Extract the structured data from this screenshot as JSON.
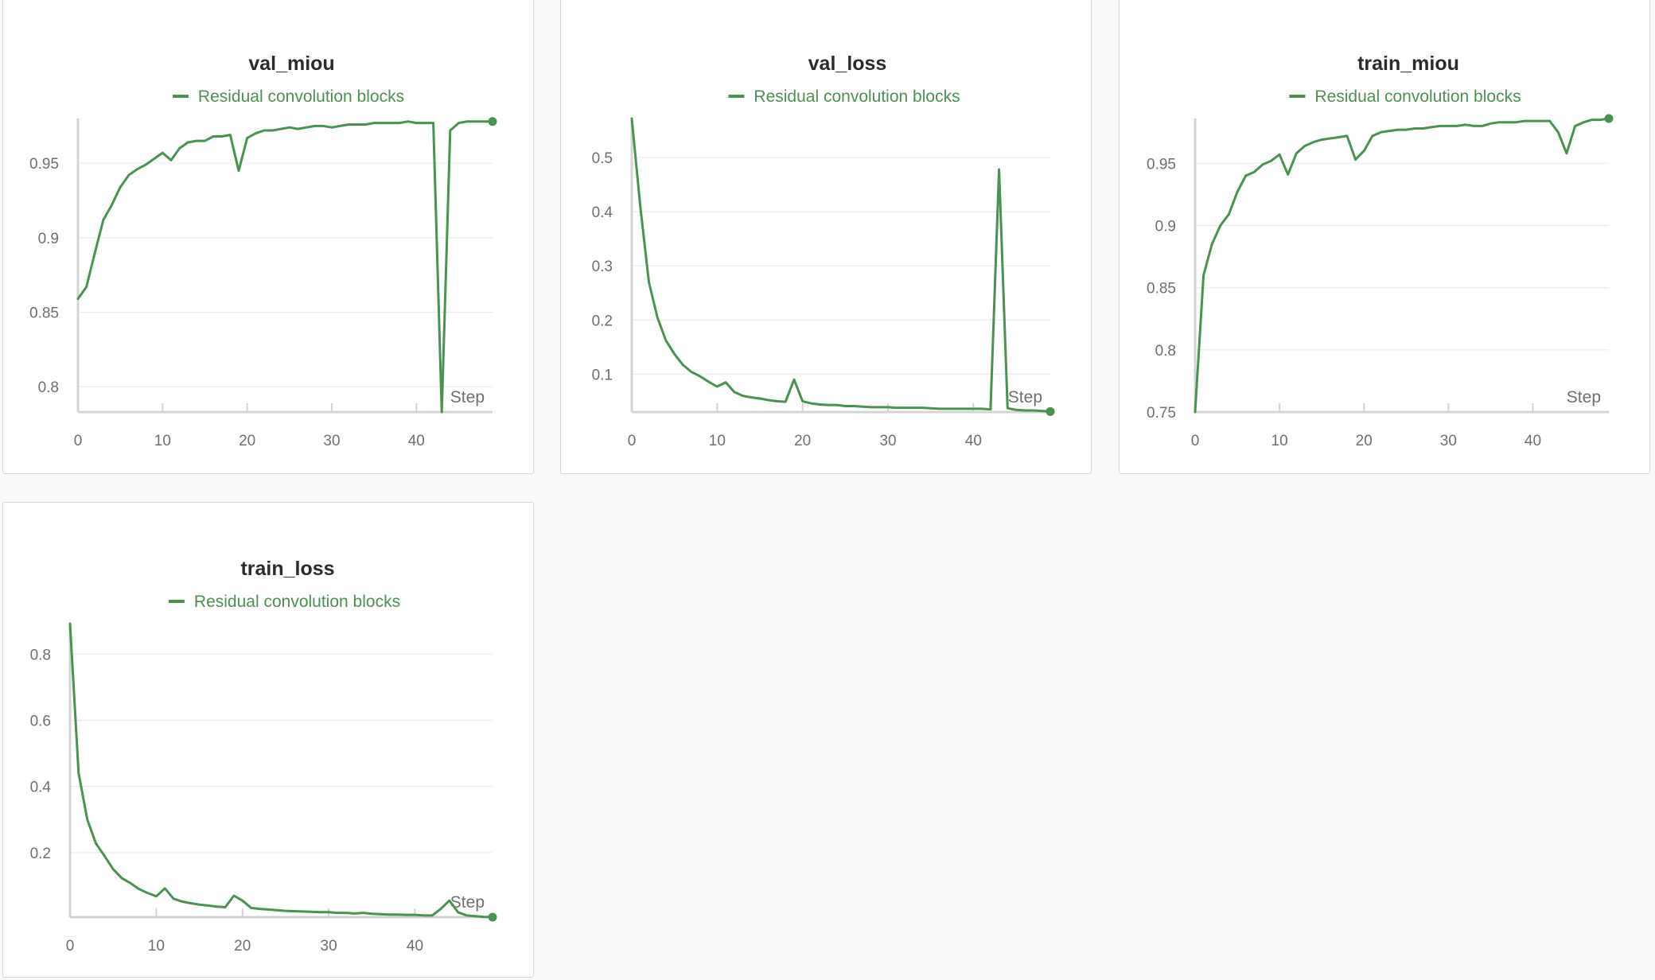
{
  "colors": {
    "series": "#4a9152",
    "grid": "#ececec",
    "axis": "#d4d4d4",
    "tick_text": "#6f6f6f",
    "panel_border": "#d6d6d6",
    "background": "#f9f9f9"
  },
  "chart_data": [
    {
      "type": "line",
      "title": "val_miou",
      "xlabel": "Step",
      "ylabel": "",
      "xlim": [
        0,
        49
      ],
      "ylim": [
        0.783,
        0.98
      ],
      "xticks": [
        0,
        10,
        20,
        30,
        40
      ],
      "yticks": [
        0.8,
        0.85,
        0.9,
        0.95
      ],
      "ytick_labels": [
        "0.8",
        "0.85",
        "0.9",
        "0.95"
      ],
      "legend": "top-center",
      "grid": true,
      "series": [
        {
          "name": "Residual convolution blocks",
          "x": [
            0,
            1,
            2,
            3,
            4,
            5,
            6,
            7,
            8,
            9,
            10,
            11,
            12,
            13,
            14,
            15,
            16,
            17,
            18,
            19,
            20,
            21,
            22,
            23,
            24,
            25,
            26,
            27,
            28,
            29,
            30,
            31,
            32,
            33,
            34,
            35,
            36,
            37,
            38,
            39,
            40,
            41,
            42,
            43,
            44,
            45,
            46,
            47,
            48,
            49
          ],
          "y": [
            0.859,
            0.867,
            0.89,
            0.912,
            0.922,
            0.934,
            0.942,
            0.946,
            0.949,
            0.953,
            0.957,
            0.952,
            0.96,
            0.964,
            0.965,
            0.965,
            0.968,
            0.968,
            0.969,
            0.945,
            0.967,
            0.97,
            0.972,
            0.972,
            0.973,
            0.974,
            0.973,
            0.974,
            0.975,
            0.975,
            0.974,
            0.975,
            0.976,
            0.976,
            0.976,
            0.977,
            0.977,
            0.977,
            0.977,
            0.978,
            0.977,
            0.977,
            0.977,
            0.783,
            0.972,
            0.977,
            0.978,
            0.978,
            0.978,
            0.978
          ]
        }
      ]
    },
    {
      "type": "line",
      "title": "val_loss",
      "xlabel": "Step",
      "ylabel": "",
      "xlim": [
        0,
        49
      ],
      "ylim": [
        0.03,
        0.572
      ],
      "xticks": [
        0,
        10,
        20,
        30,
        40
      ],
      "yticks": [
        0.1,
        0.2,
        0.3,
        0.4,
        0.5
      ],
      "ytick_labels": [
        "0.1",
        "0.2",
        "0.3",
        "0.4",
        "0.5"
      ],
      "legend": "top-center",
      "grid": true,
      "series": [
        {
          "name": "Residual convolution blocks",
          "x": [
            0,
            1,
            2,
            3,
            4,
            5,
            6,
            7,
            8,
            9,
            10,
            11,
            12,
            13,
            14,
            15,
            16,
            17,
            18,
            19,
            20,
            21,
            22,
            23,
            24,
            25,
            26,
            27,
            28,
            29,
            30,
            31,
            32,
            33,
            34,
            35,
            36,
            37,
            38,
            39,
            40,
            41,
            42,
            43,
            44,
            45,
            46,
            47,
            48,
            49
          ],
          "y": [
            0.572,
            0.41,
            0.27,
            0.205,
            0.162,
            0.137,
            0.117,
            0.104,
            0.096,
            0.086,
            0.077,
            0.085,
            0.067,
            0.06,
            0.057,
            0.055,
            0.052,
            0.05,
            0.049,
            0.09,
            0.05,
            0.046,
            0.044,
            0.043,
            0.043,
            0.041,
            0.041,
            0.04,
            0.039,
            0.039,
            0.039,
            0.038,
            0.038,
            0.038,
            0.038,
            0.037,
            0.036,
            0.036,
            0.036,
            0.036,
            0.036,
            0.036,
            0.035,
            0.478,
            0.037,
            0.034,
            0.033,
            0.033,
            0.032,
            0.031
          ]
        }
      ]
    },
    {
      "type": "line",
      "title": "train_miou",
      "xlabel": "Step",
      "ylabel": "",
      "xlim": [
        0,
        49
      ],
      "ylim": [
        0.75,
        0.986
      ],
      "xticks": [
        0,
        10,
        20,
        30,
        40
      ],
      "yticks": [
        0.75,
        0.8,
        0.85,
        0.9,
        0.95
      ],
      "ytick_labels": [
        "0.75",
        "0.8",
        "0.85",
        "0.9",
        "0.95"
      ],
      "legend": "top-center",
      "grid": true,
      "series": [
        {
          "name": "Residual convolution blocks",
          "x": [
            0,
            1,
            2,
            3,
            4,
            5,
            6,
            7,
            8,
            9,
            10,
            11,
            12,
            13,
            14,
            15,
            16,
            17,
            18,
            19,
            20,
            21,
            22,
            23,
            24,
            25,
            26,
            27,
            28,
            29,
            30,
            31,
            32,
            33,
            34,
            35,
            36,
            37,
            38,
            39,
            40,
            41,
            42,
            43,
            44,
            45,
            46,
            47,
            48,
            49
          ],
          "y": [
            0.75,
            0.86,
            0.885,
            0.9,
            0.909,
            0.927,
            0.94,
            0.943,
            0.949,
            0.952,
            0.957,
            0.941,
            0.958,
            0.964,
            0.967,
            0.969,
            0.97,
            0.971,
            0.972,
            0.953,
            0.96,
            0.972,
            0.975,
            0.976,
            0.977,
            0.977,
            0.978,
            0.978,
            0.979,
            0.98,
            0.98,
            0.98,
            0.981,
            0.98,
            0.98,
            0.982,
            0.983,
            0.983,
            0.983,
            0.984,
            0.984,
            0.984,
            0.984,
            0.975,
            0.958,
            0.98,
            0.983,
            0.985,
            0.985,
            0.986
          ]
        }
      ]
    },
    {
      "type": "line",
      "title": "train_loss",
      "xlabel": "Step",
      "ylabel": "",
      "xlim": [
        0,
        49
      ],
      "ylim": [
        0.005,
        0.892
      ],
      "xticks": [
        0,
        10,
        20,
        30,
        40
      ],
      "yticks": [
        0.2,
        0.4,
        0.6,
        0.8
      ],
      "ytick_labels": [
        "0.2",
        "0.4",
        "0.6",
        "0.8"
      ],
      "legend": "top-center",
      "grid": true,
      "series": [
        {
          "name": "Residual convolution blocks",
          "x": [
            0,
            1,
            2,
            3,
            4,
            5,
            6,
            7,
            8,
            9,
            10,
            11,
            12,
            13,
            14,
            15,
            16,
            17,
            18,
            19,
            20,
            21,
            22,
            23,
            24,
            25,
            26,
            27,
            28,
            29,
            30,
            31,
            32,
            33,
            34,
            35,
            36,
            37,
            38,
            39,
            40,
            41,
            42,
            43,
            44,
            45,
            46,
            47,
            48,
            49
          ],
          "y": [
            0.892,
            0.44,
            0.3,
            0.228,
            0.19,
            0.15,
            0.123,
            0.108,
            0.09,
            0.078,
            0.068,
            0.092,
            0.061,
            0.052,
            0.047,
            0.043,
            0.04,
            0.037,
            0.035,
            0.07,
            0.055,
            0.033,
            0.03,
            0.028,
            0.026,
            0.024,
            0.023,
            0.022,
            0.021,
            0.02,
            0.02,
            0.018,
            0.018,
            0.016,
            0.018,
            0.015,
            0.014,
            0.013,
            0.013,
            0.012,
            0.012,
            0.01,
            0.01,
            0.03,
            0.055,
            0.02,
            0.01,
            0.008,
            0.006,
            0.005
          ]
        }
      ]
    }
  ]
}
